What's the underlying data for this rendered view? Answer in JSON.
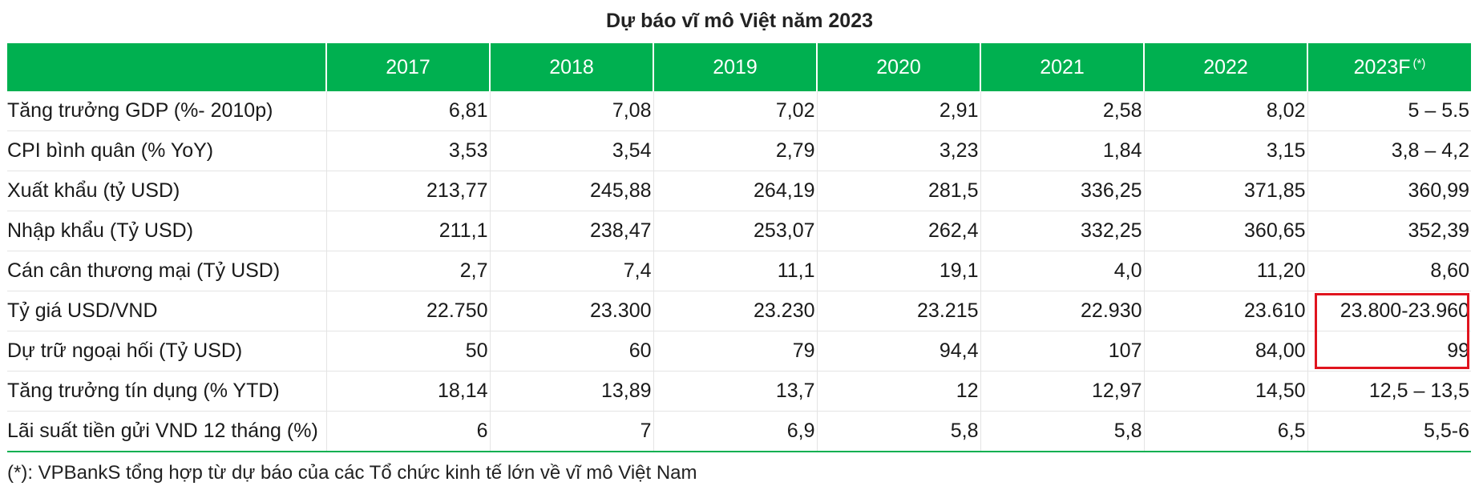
{
  "title": "Dự báo vĩ mô Việt năm 2023",
  "table": {
    "headers": [
      "",
      "2017",
      "2018",
      "2019",
      "2020",
      "2021",
      "2022",
      "2023F"
    ],
    "forecast_marker": "(*)",
    "rows": [
      {
        "label": "Tăng trưởng GDP (%- 2010p)",
        "values": [
          "6,81",
          "7,08",
          "7,02",
          "2,91",
          "2,58",
          "8,02",
          "5 – 5.5"
        ]
      },
      {
        "label": "CPI bình quân (% YoY)",
        "values": [
          "3,53",
          "3,54",
          "2,79",
          "3,23",
          "1,84",
          "3,15",
          "3,8 – 4,2"
        ]
      },
      {
        "label": "Xuất khẩu (tỷ USD)",
        "values": [
          "213,77",
          "245,88",
          "264,19",
          "281,5",
          "336,25",
          "371,85",
          "360,99"
        ]
      },
      {
        "label": "Nhập khẩu (Tỷ USD)",
        "values": [
          "211,1",
          "238,47",
          "253,07",
          "262,4",
          "332,25",
          "360,65",
          "352,39"
        ]
      },
      {
        "label": "Cán cân thương mại (Tỷ USD)",
        "values": [
          "2,7",
          "7,4",
          "11,1",
          "19,1",
          "4,0",
          "11,20",
          "8,60"
        ]
      },
      {
        "label": "Tỷ giá USD/VND",
        "values": [
          "22.750",
          "23.300",
          "23.230",
          "23.215",
          "22.930",
          "23.610",
          "23.800-23.960"
        ]
      },
      {
        "label": "Dự trữ ngoại hối (Tỷ USD)",
        "values": [
          "50",
          "60",
          "79",
          "94,4",
          "107",
          "84,00",
          "99"
        ]
      },
      {
        "label": "Tăng trưởng tín dụng (% YTD)",
        "values": [
          "18,14",
          "13,89",
          "13,7",
          "12",
          "12,97",
          "14,50",
          "12,5 – 13,5"
        ]
      },
      {
        "label": "Lãi suất tiền gửi VND 12 tháng (%)",
        "values": [
          "6",
          "7",
          "6,9",
          "5,8",
          "5,8",
          "6,5",
          "5,5-6"
        ]
      }
    ]
  },
  "footnote": "(*): VPBankS tổng hợp từ dự báo của các Tổ chức kinh tế lớn về vĩ mô Việt Nam",
  "colors": {
    "header_bg": "#00b050",
    "highlight_border": "#e0141e"
  }
}
